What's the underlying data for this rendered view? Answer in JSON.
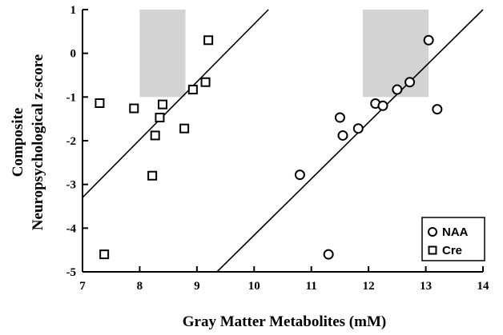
{
  "chart_data": {
    "type": "scatter",
    "xlabel": "Gray Matter Metabolites (mM)",
    "ylabel_line1": "Composite",
    "ylabel_line2": "Neuropsychological z-score",
    "xlim": [
      7,
      14
    ],
    "ylim": [
      -5,
      1
    ],
    "xticks": [
      7,
      8,
      9,
      10,
      11,
      12,
      13,
      14
    ],
    "yticks": [
      1,
      0,
      -1,
      -2,
      -3,
      -4,
      -5
    ],
    "grid": false,
    "legend_position": "bottom-right",
    "shaded_regions": [
      {
        "x": [
          8.0,
          8.8
        ],
        "y": [
          -1,
          1
        ],
        "color": "#d3d3d3"
      },
      {
        "x": [
          11.9,
          13.05
        ],
        "y": [
          -1,
          1
        ],
        "color": "#d3d3d3"
      }
    ],
    "fit_lines": [
      {
        "series": "Cre",
        "x": [
          7.0,
          10.25
        ],
        "y": [
          -3.3,
          1.0
        ]
      },
      {
        "series": "NAA",
        "x": [
          9.35,
          14.0
        ],
        "y": [
          -5.0,
          1.0
        ]
      }
    ],
    "series": [
      {
        "name": "NAA",
        "marker": "circle",
        "points": [
          {
            "x": 10.8,
            "y": -2.78
          },
          {
            "x": 11.3,
            "y": -4.6
          },
          {
            "x": 11.5,
            "y": -1.47
          },
          {
            "x": 11.55,
            "y": -1.88
          },
          {
            "x": 11.82,
            "y": -1.72
          },
          {
            "x": 12.12,
            "y": -1.15
          },
          {
            "x": 12.25,
            "y": -1.2
          },
          {
            "x": 12.5,
            "y": -0.83
          },
          {
            "x": 12.72,
            "y": -0.66
          },
          {
            "x": 13.05,
            "y": 0.3
          },
          {
            "x": 13.2,
            "y": -1.28
          }
        ]
      },
      {
        "name": "Cre",
        "marker": "square",
        "points": [
          {
            "x": 7.3,
            "y": -1.14
          },
          {
            "x": 7.38,
            "y": -4.6
          },
          {
            "x": 7.9,
            "y": -1.26
          },
          {
            "x": 8.22,
            "y": -2.8
          },
          {
            "x": 8.27,
            "y": -1.88
          },
          {
            "x": 8.35,
            "y": -1.47
          },
          {
            "x": 8.4,
            "y": -1.17
          },
          {
            "x": 8.78,
            "y": -1.72
          },
          {
            "x": 8.93,
            "y": -0.83
          },
          {
            "x": 9.15,
            "y": -0.66
          },
          {
            "x": 9.2,
            "y": 0.3
          }
        ]
      }
    ]
  }
}
